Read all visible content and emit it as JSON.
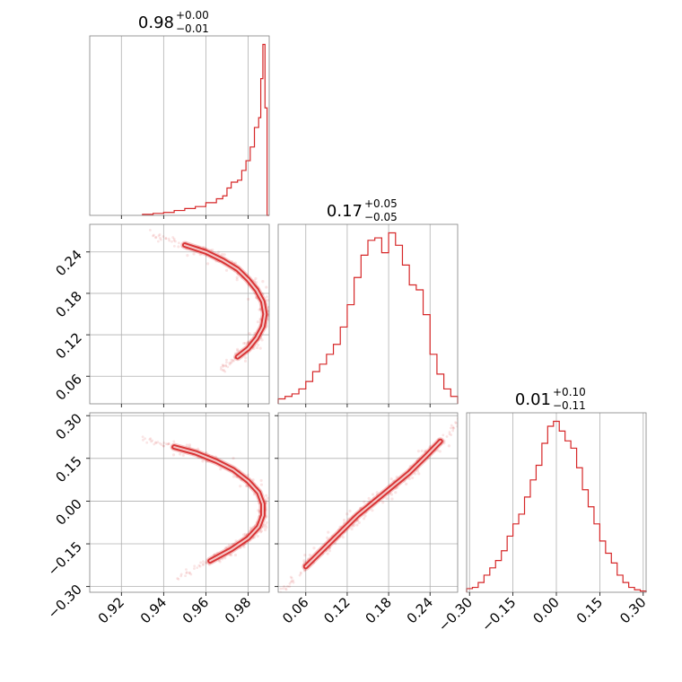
{
  "figure": {
    "type": "corner-plot"
  },
  "chart_data": [
    {
      "type": "histogram",
      "param_index": 0,
      "title": {
        "median": "0.98",
        "plus": "+0.00",
        "minus": "−0.01"
      },
      "xlim": [
        0.905,
        0.99
      ],
      "bins": [
        0.93,
        0.935,
        0.94,
        0.945,
        0.95,
        0.955,
        0.96,
        0.965,
        0.968,
        0.97,
        0.972,
        0.975,
        0.977,
        0.979,
        0.981,
        0.983,
        0.985,
        0.986,
        0.987,
        0.988,
        0.989,
        0.99
      ],
      "counts": [
        1,
        2,
        3,
        5,
        7,
        9,
        13,
        17,
        20,
        28,
        34,
        36,
        46,
        56,
        70,
        90,
        100,
        140,
        175,
        110,
        0
      ],
      "color": "#d62728"
    },
    {
      "type": "histogram",
      "param_index": 1,
      "title": {
        "median": "0.17",
        "plus": "+0.05",
        "minus": "−0.05"
      },
      "xlim": [
        0.02,
        0.28
      ],
      "bins": [
        0.02,
        0.03,
        0.04,
        0.05,
        0.06,
        0.07,
        0.08,
        0.09,
        0.1,
        0.11,
        0.12,
        0.13,
        0.14,
        0.15,
        0.16,
        0.17,
        0.18,
        0.19,
        0.2,
        0.21,
        0.22,
        0.23,
        0.24,
        0.25,
        0.26,
        0.27,
        0.28
      ],
      "counts": [
        4,
        6,
        8,
        12,
        18,
        26,
        32,
        40,
        48,
        62,
        80,
        102,
        120,
        132,
        134,
        122,
        138,
        128,
        112,
        96,
        92,
        72,
        40,
        24,
        12,
        6
      ],
      "color": "#d62728"
    },
    {
      "type": "histogram",
      "param_index": 2,
      "title": {
        "median": "0.01",
        "plus": "+0.10",
        "minus": "−0.11"
      },
      "xlim": [
        -0.31,
        0.31
      ],
      "bins": [
        -0.31,
        -0.29,
        -0.27,
        -0.25,
        -0.23,
        -0.21,
        -0.19,
        -0.17,
        -0.15,
        -0.13,
        -0.11,
        -0.09,
        -0.07,
        -0.05,
        -0.03,
        -0.01,
        0.01,
        0.03,
        0.05,
        0.07,
        0.09,
        0.11,
        0.13,
        0.15,
        0.17,
        0.19,
        0.21,
        0.23,
        0.25,
        0.27,
        0.29,
        0.31
      ],
      "counts": [
        3,
        4,
        8,
        14,
        20,
        26,
        34,
        46,
        56,
        64,
        78,
        92,
        104,
        122,
        136,
        140,
        132,
        124,
        118,
        102,
        84,
        70,
        56,
        42,
        32,
        24,
        14,
        8,
        4,
        2,
        1
      ],
      "color": "#d62728"
    },
    {
      "type": "scatter",
      "params": [
        0,
        1
      ],
      "xlim": [
        0.905,
        0.99
      ],
      "ylim": [
        0.02,
        0.28
      ],
      "ridge": [
        [
          0.95,
          0.25
        ],
        [
          0.96,
          0.24
        ],
        [
          0.968,
          0.228
        ],
        [
          0.975,
          0.215
        ],
        [
          0.98,
          0.2
        ],
        [
          0.984,
          0.185
        ],
        [
          0.987,
          0.168
        ],
        [
          0.988,
          0.15
        ],
        [
          0.987,
          0.132
        ],
        [
          0.984,
          0.115
        ],
        [
          0.98,
          0.1
        ],
        [
          0.975,
          0.088
        ]
      ],
      "color": "#d62728"
    },
    {
      "type": "scatter",
      "params": [
        0,
        2
      ],
      "xlim": [
        0.905,
        0.99
      ],
      "ylim": [
        -0.32,
        0.31
      ],
      "ridge": [
        [
          0.945,
          0.19
        ],
        [
          0.955,
          0.17
        ],
        [
          0.965,
          0.14
        ],
        [
          0.973,
          0.11
        ],
        [
          0.98,
          0.07
        ],
        [
          0.985,
          0.03
        ],
        [
          0.987,
          -0.01
        ],
        [
          0.987,
          -0.05
        ],
        [
          0.985,
          -0.09
        ],
        [
          0.98,
          -0.13
        ],
        [
          0.972,
          -0.17
        ],
        [
          0.962,
          -0.21
        ]
      ],
      "color": "#d62728"
    },
    {
      "type": "scatter",
      "params": [
        1,
        2
      ],
      "xlim": [
        0.02,
        0.28
      ],
      "ylim": [
        -0.32,
        0.31
      ],
      "ridge": [
        [
          0.06,
          -0.23
        ],
        [
          0.085,
          -0.17
        ],
        [
          0.11,
          -0.11
        ],
        [
          0.135,
          -0.05
        ],
        [
          0.16,
          0.0
        ],
        [
          0.185,
          0.05
        ],
        [
          0.21,
          0.1
        ],
        [
          0.235,
          0.16
        ],
        [
          0.255,
          0.21
        ]
      ],
      "color": "#d62728"
    }
  ],
  "axes": {
    "p0": {
      "ticks": [
        0.92,
        0.94,
        0.96,
        0.98
      ],
      "labels": [
        "0.92",
        "0.94",
        "0.96",
        "0.98"
      ]
    },
    "p1": {
      "ticks": [
        0.06,
        0.12,
        0.18,
        0.24
      ],
      "labels": [
        "0.06",
        "0.12",
        "0.18",
        "0.24"
      ]
    },
    "p2": {
      "ticks": [
        -0.3,
        -0.15,
        0.0,
        0.15,
        0.3
      ],
      "labels": [
        "−0.30",
        "−0.15",
        "0.00",
        "0.15",
        "0.30"
      ]
    }
  }
}
